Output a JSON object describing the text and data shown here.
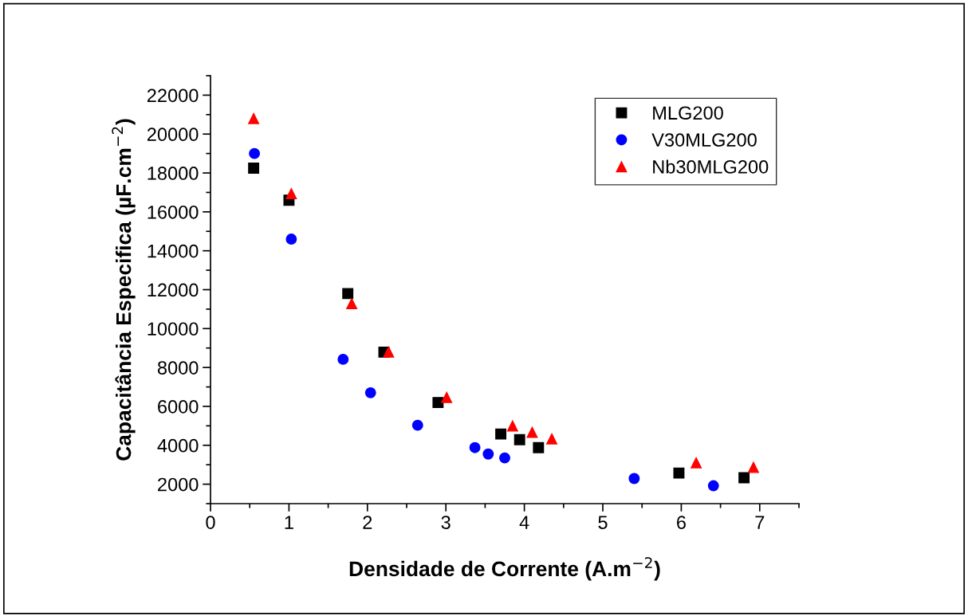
{
  "chart_data": {
    "type": "scatter",
    "xlabel": "Densidade de Corrente (A.m$^{−2}$)",
    "ylabel": "Capacitância Especifica (µF.cm$^{−2}$)",
    "xlim": [
      0,
      7.5
    ],
    "xticks": [
      0,
      {
        "value": 0.5,
        "label": null
      },
      1,
      {
        "value": 1.5,
        "label": null
      },
      2,
      {
        "value": 2.5,
        "label": null
      },
      3,
      {
        "value": 3.5,
        "label": null
      },
      4,
      {
        "value": 4.5,
        "label": null
      },
      5,
      {
        "value": 5.5,
        "label": null
      },
      6,
      {
        "value": 6.5,
        "label": null
      },
      7,
      {
        "value": 7.5,
        "label": null
      }
    ],
    "ylim": [
      1000,
      23000
    ],
    "yticks": [
      {
        "value": 1000,
        "label": null
      },
      2000,
      {
        "value": 3000,
        "label": null
      },
      4000,
      {
        "value": 5000,
        "label": null
      },
      6000,
      {
        "value": 7000,
        "label": null
      },
      8000,
      {
        "value": 9000,
        "label": null
      },
      10000,
      {
        "value": 11000,
        "label": null
      },
      12000,
      {
        "value": 13000,
        "label": null
      },
      14000,
      {
        "value": 15000,
        "label": null
      },
      16000,
      {
        "value": 17000,
        "label": null
      },
      18000,
      {
        "value": 19000,
        "label": null
      },
      20000,
      {
        "value": 21000,
        "label": null
      },
      22000,
      {
        "value": 23000,
        "label": null
      }
    ],
    "grid": false,
    "legend": "top right",
    "series": [
      {
        "name": "MLG200",
        "color": "#000000",
        "marker": "square",
        "x": [
          0.55,
          1.0,
          1.75,
          2.21,
          2.9,
          3.7,
          3.94,
          4.18,
          5.97,
          6.8
        ],
        "values": [
          18250,
          16600,
          11800,
          8790,
          6200,
          4580,
          4290,
          3880,
          2570,
          2330
        ]
      },
      {
        "name": "V30MLG200",
        "color": "#0000ff",
        "marker": "circle",
        "x": [
          0.56,
          1.03,
          1.69,
          2.04,
          2.64,
          3.37,
          3.54,
          3.75,
          5.4,
          6.41
        ],
        "values": [
          19000,
          14600,
          8420,
          6700,
          5030,
          3880,
          3550,
          3350,
          2290,
          1920
        ]
      },
      {
        "name": "Nb30MLG200",
        "color": "#ff0000",
        "marker": "triangle",
        "x": [
          0.55,
          1.03,
          1.8,
          2.27,
          3.01,
          3.85,
          4.1,
          4.35,
          6.19,
          6.92
        ],
        "values": [
          20800,
          16930,
          11280,
          8790,
          6460,
          4990,
          4660,
          4330,
          3100,
          2860
        ]
      }
    ]
  }
}
